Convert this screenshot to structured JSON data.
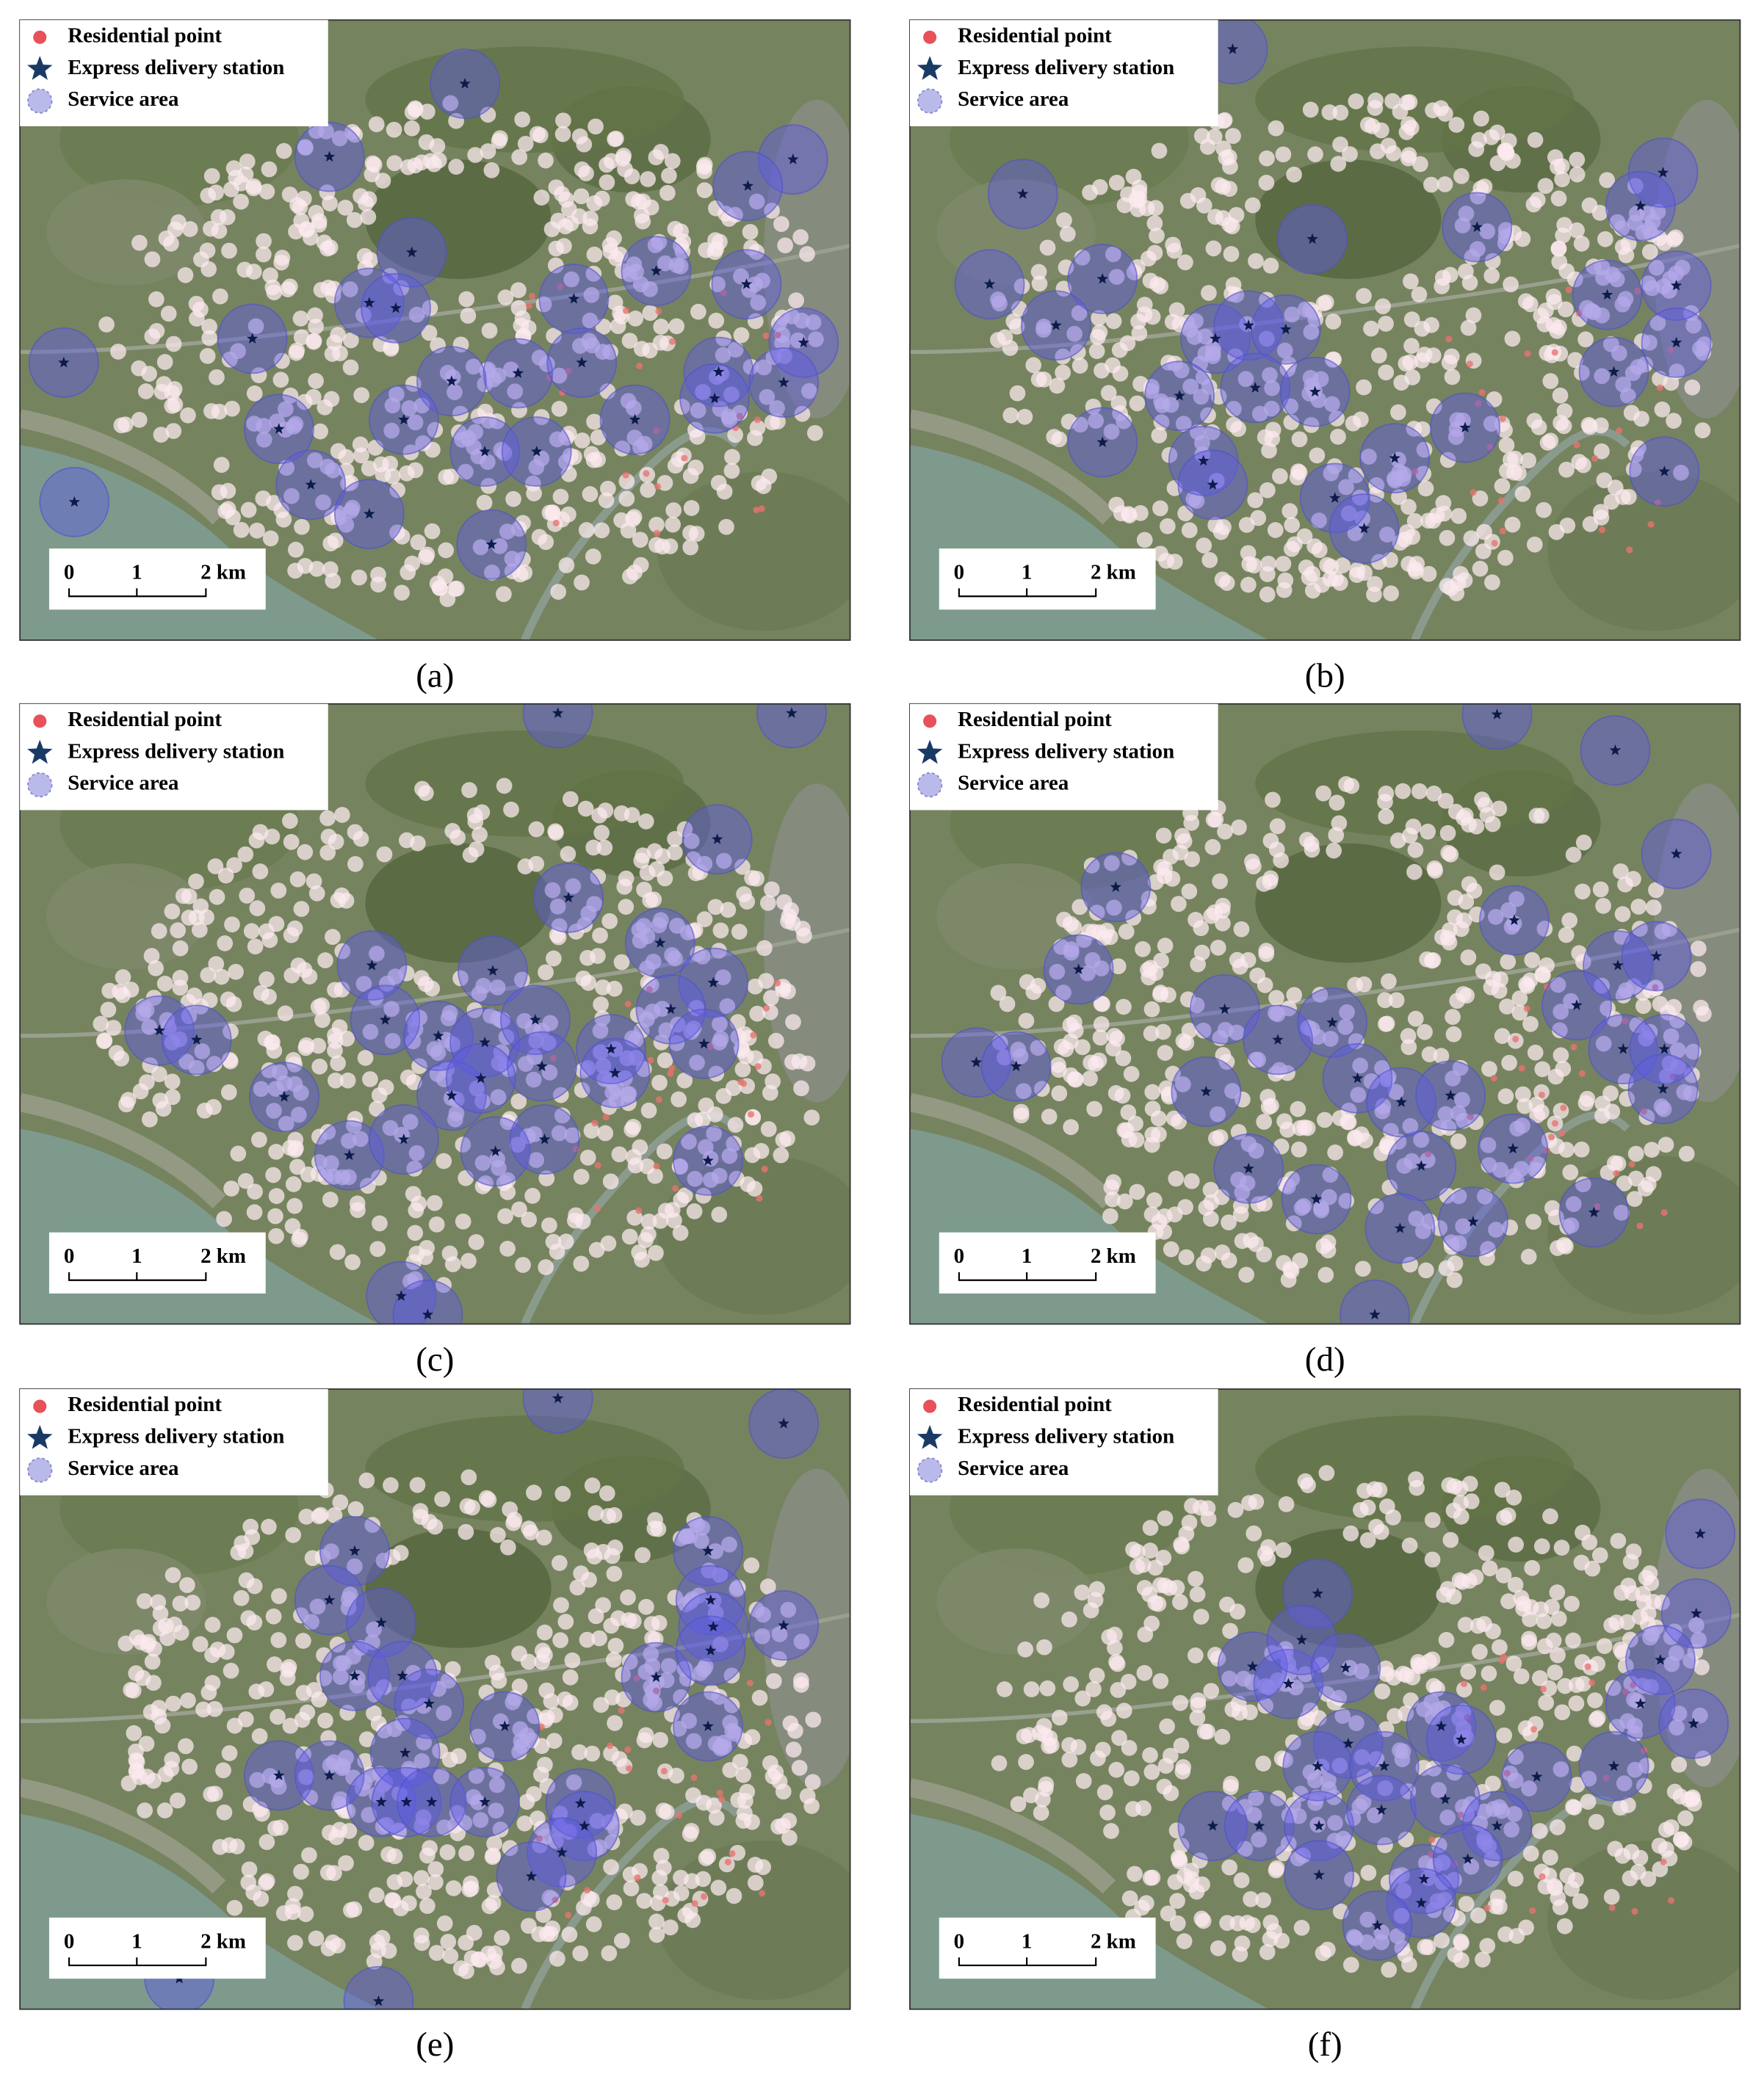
{
  "panels": [
    {
      "caption": "(a)",
      "legend": [
        "Residential point",
        "Express delivery station",
        "Service area"
      ],
      "scale_bar": [
        "0",
        "1",
        "2 km"
      ]
    },
    {
      "caption": "(b)",
      "legend": [
        "Residential point",
        "Express delivery station",
        "Service area"
      ],
      "scale_bar": [
        "0",
        "1",
        "2 km"
      ]
    },
    {
      "caption": "(c)",
      "legend": [
        "Residential point",
        "Express delivery station",
        "Service area"
      ],
      "scale_bar": [
        "0",
        "1",
        "2 km"
      ]
    },
    {
      "caption": "(d)",
      "legend": [
        "Residential point",
        "Express delivery station",
        "Service area"
      ],
      "scale_bar": [
        "0",
        "1",
        "2 km"
      ]
    },
    {
      "caption": "(e)",
      "legend": [
        "Residential point",
        "Express delivery station",
        "Service area"
      ],
      "scale_bar": [
        "0",
        "1",
        "2 km"
      ]
    },
    {
      "caption": "(f)",
      "legend": [
        "Residential point",
        "Express delivery station",
        "Service area"
      ],
      "scale_bar": [
        "0",
        "1",
        "2 km"
      ]
    }
  ]
}
